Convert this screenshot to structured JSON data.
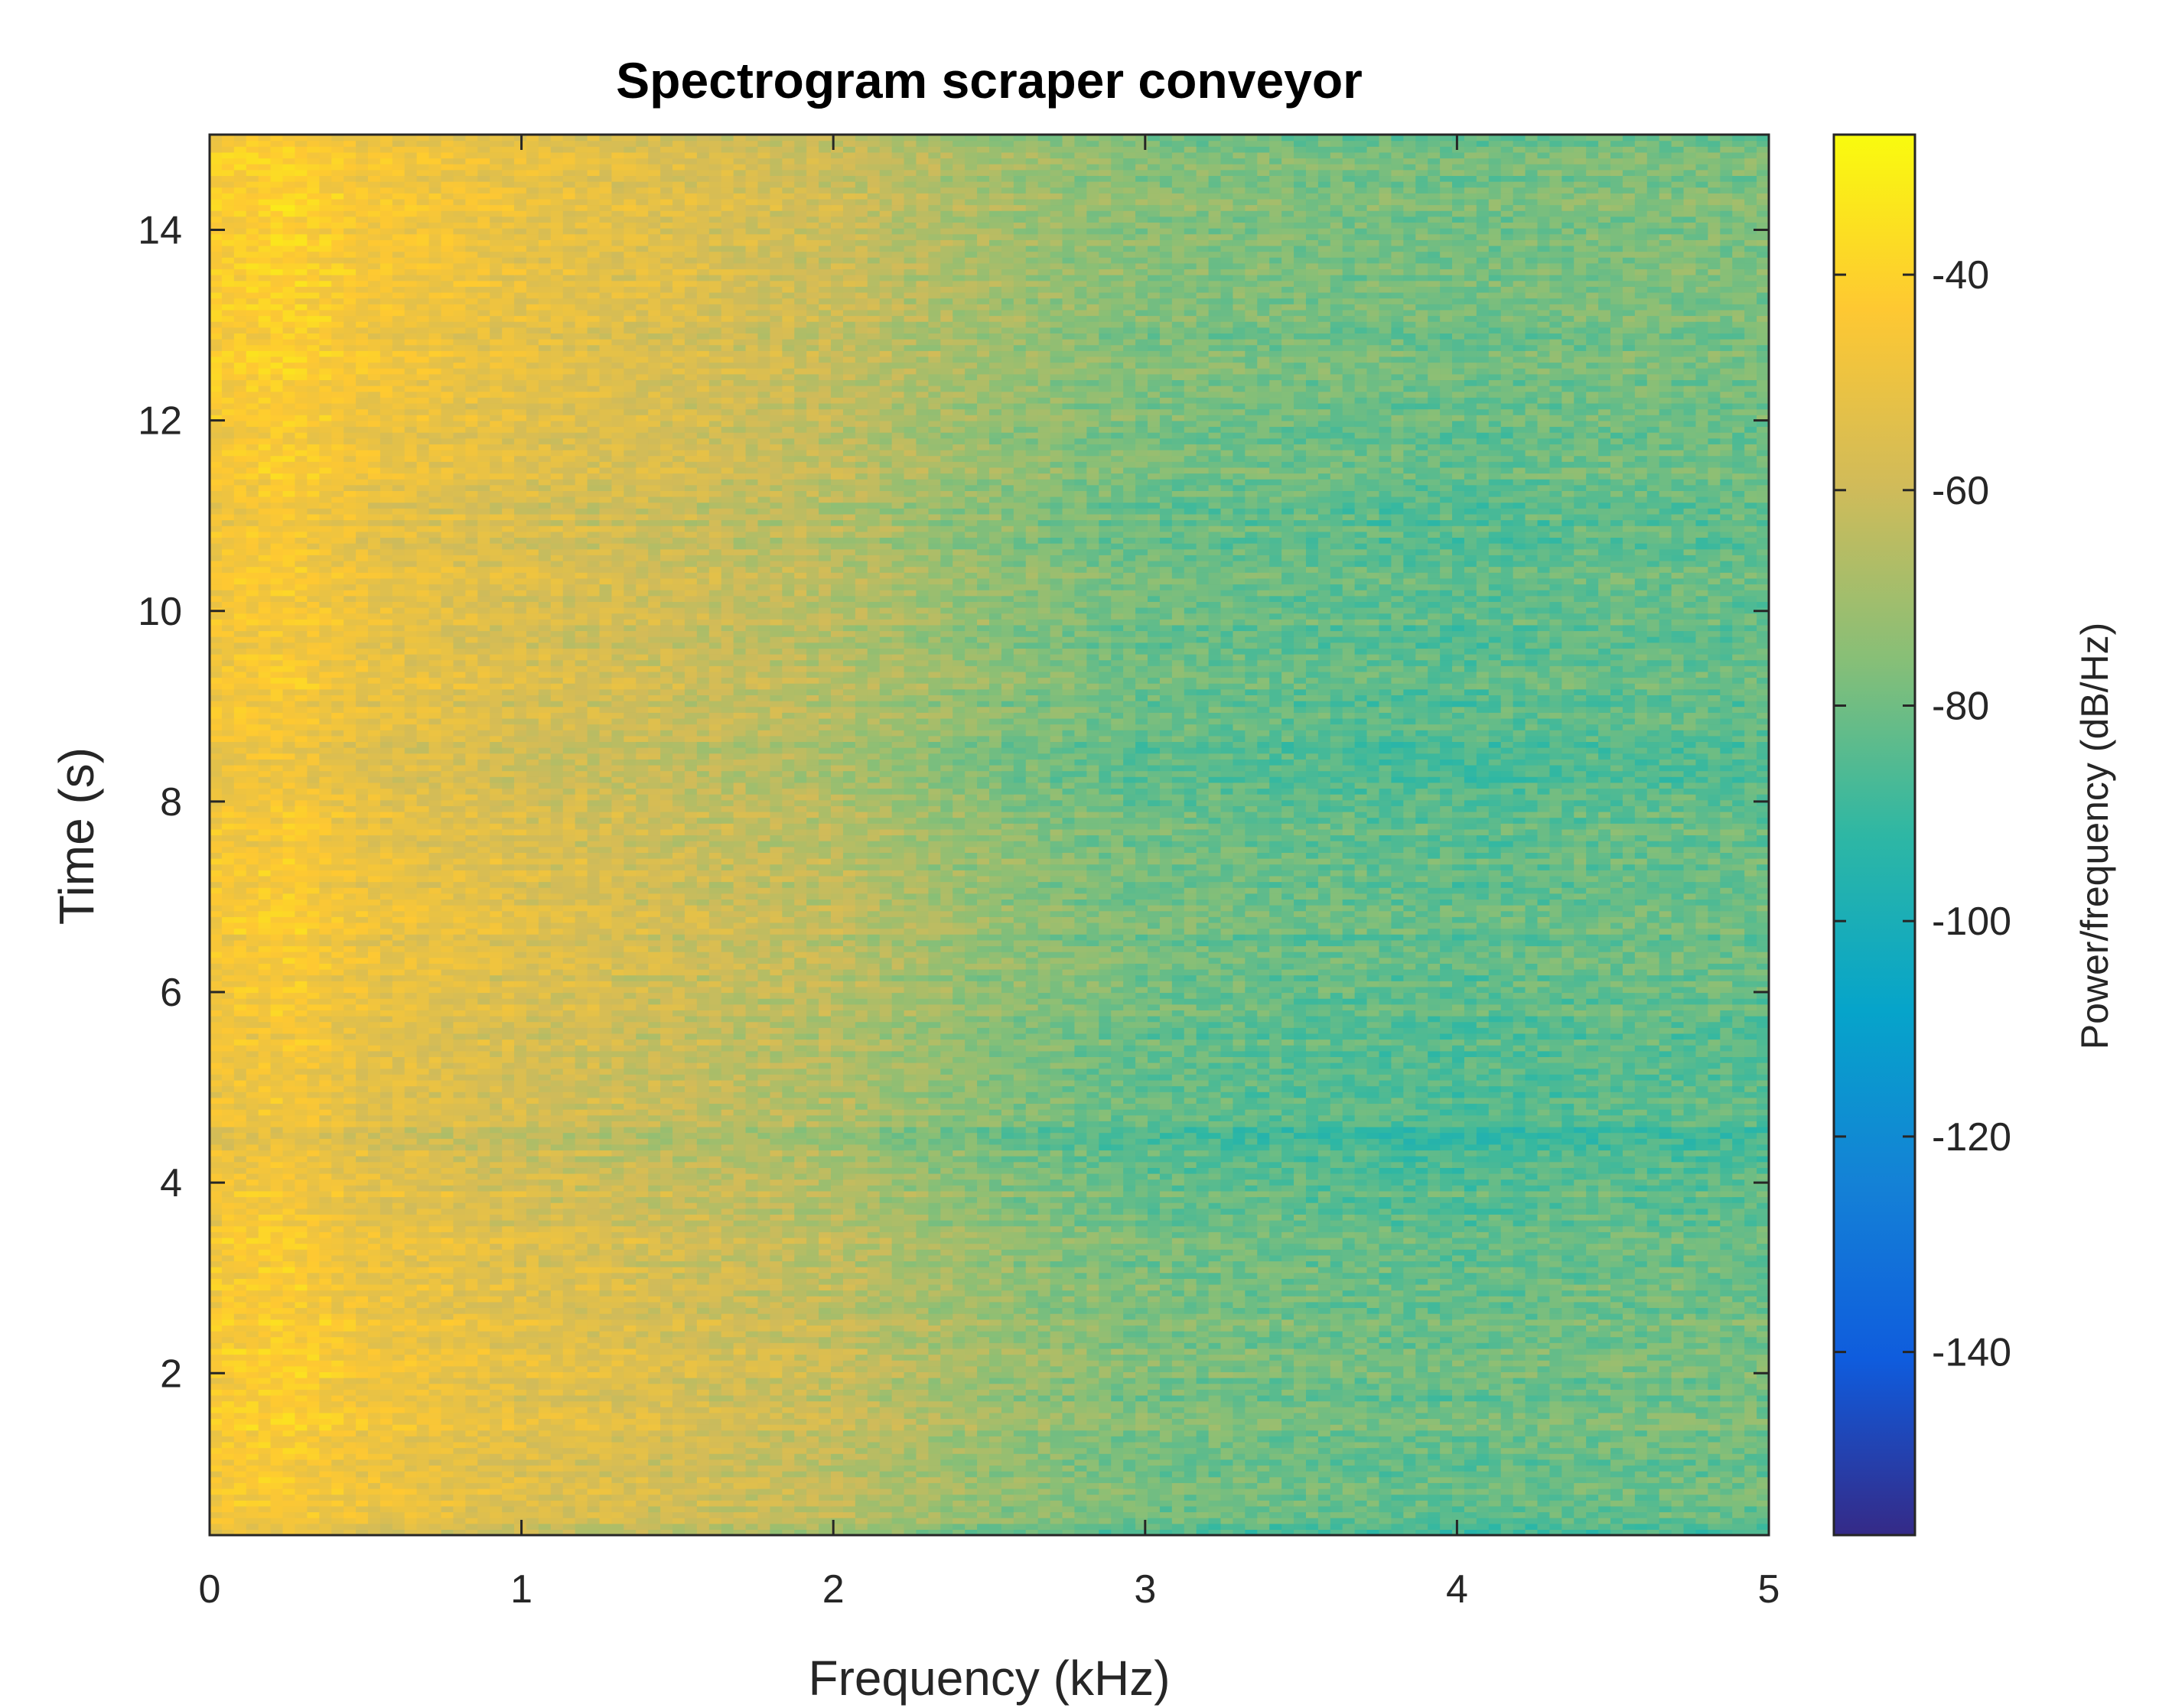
{
  "chart_data": {
    "type": "heatmap",
    "title": "Spectrogram scraper conveyor",
    "xlabel": "Frequency (kHz)",
    "ylabel": "Time (s)",
    "xlim": [
      0,
      5
    ],
    "ylim": [
      0.3,
      15
    ],
    "xticks": [
      0,
      1,
      2,
      3,
      4,
      5
    ],
    "xtick_labels": [
      "0",
      "1",
      "2",
      "3",
      "4",
      "5"
    ],
    "yticks": [
      2,
      4,
      6,
      8,
      10,
      12,
      14
    ],
    "ytick_labels": [
      "2",
      "4",
      "6",
      "8",
      "10",
      "12",
      "14"
    ],
    "grid": false,
    "colormap": "parula",
    "colorbar": {
      "label": "Power/frequency (dB/Hz)",
      "clim": [
        -157,
        -27
      ],
      "ticks": [
        -40,
        -60,
        -80,
        -100,
        -120,
        -140
      ],
      "tick_labels": [
        "-40",
        "-60",
        "-80",
        "-100",
        "-120",
        "-140"
      ]
    },
    "frequency_profile": {
      "frequency_khz": [
        0,
        0.25,
        0.5,
        1,
        1.5,
        2,
        2.5,
        3,
        3.5,
        4,
        4.5,
        5
      ],
      "power_db_per_hz": [
        -46,
        -43,
        -49,
        -54,
        -58,
        -63,
        -72,
        -78,
        -80,
        -82,
        -80,
        -80
      ]
    },
    "time_profile": {
      "time_s": [
        0.3,
        0.5,
        1,
        2,
        3,
        4,
        4.5,
        5,
        6,
        7,
        8,
        8.5,
        9,
        10,
        11,
        12,
        13,
        14,
        15
      ],
      "power_offset_db": [
        -10,
        -2,
        0,
        1,
        1,
        -3,
        -7,
        -4,
        -2,
        0,
        -3,
        -5,
        -3,
        -1,
        -3,
        1,
        2,
        3,
        1
      ]
    },
    "resolution": {
      "frequency_bins": 128,
      "time_bins": 240
    }
  },
  "colors": {
    "axes": "#262626",
    "title": "#000000",
    "parula": [
      "#352a87",
      "#0f5cdd",
      "#1481d6",
      "#06a4ca",
      "#2eb7a4",
      "#87bf77",
      "#d1bb59",
      "#fec832",
      "#f9fb0e"
    ]
  }
}
